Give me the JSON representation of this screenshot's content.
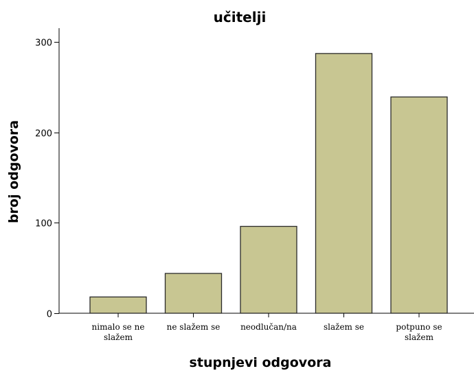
{
  "chart_data": {
    "type": "bar",
    "title": "učitelji",
    "xlabel": "stupnjevi odgovora",
    "ylabel": "broj odgovora",
    "categories": [
      [
        "nimalo se ne",
        "slažem"
      ],
      [
        "ne slažem se"
      ],
      [
        "neodlučan/na"
      ],
      [
        "slažem se"
      ],
      [
        "potpuno se",
        "slažem"
      ]
    ],
    "values": [
      18,
      44,
      96,
      287,
      239
    ],
    "ylim": [
      0,
      315
    ],
    "yticks": [
      0,
      100,
      200,
      300
    ],
    "grid": false,
    "colors": {
      "bar_fill": "#c8c692",
      "bar_stroke": "#2a2a2a",
      "axis": "#000000"
    }
  }
}
